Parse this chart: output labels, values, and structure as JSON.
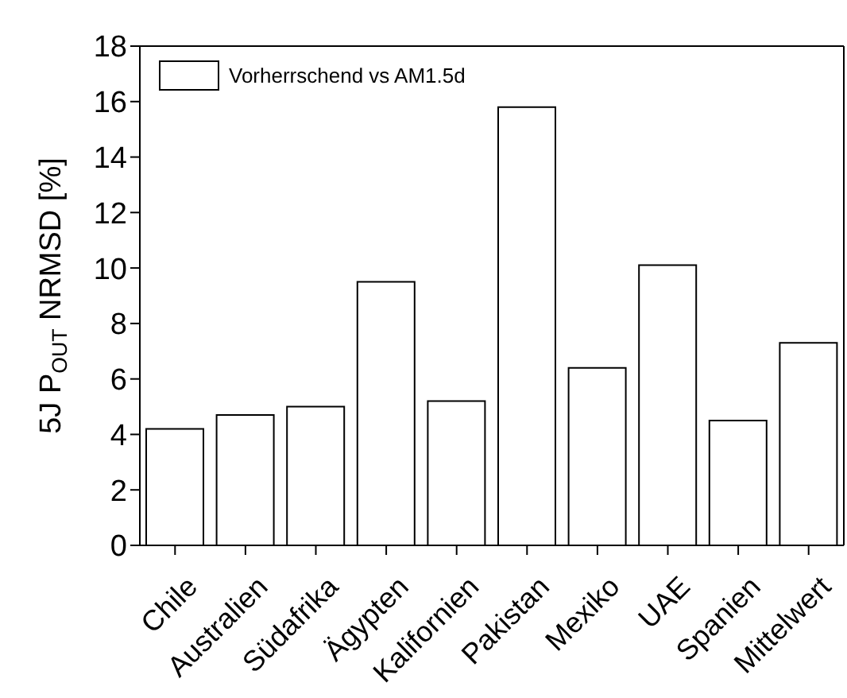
{
  "chart_data": {
    "type": "bar",
    "ylabel": "5J P$_{OUT}$ NRMSD [%]",
    "categories": [
      "Chile",
      "Australien",
      "Südafrika",
      "Ägypten",
      "Kalifornien",
      "Pakistan",
      "Mexiko",
      "UAE",
      "Spanien",
      "Mittelwert"
    ],
    "series": [
      {
        "name": "Vorherrschend vs AM1.5d",
        "color": "#ffffff",
        "values": [
          4.2,
          4.7,
          5.0,
          9.5,
          5.2,
          15.8,
          6.4,
          10.1,
          4.5,
          7.3
        ]
      }
    ],
    "ylim": [
      0,
      18
    ],
    "yticks": [
      0,
      2,
      4,
      6,
      8,
      10,
      12,
      14,
      16,
      18
    ],
    "legend": "top left"
  }
}
